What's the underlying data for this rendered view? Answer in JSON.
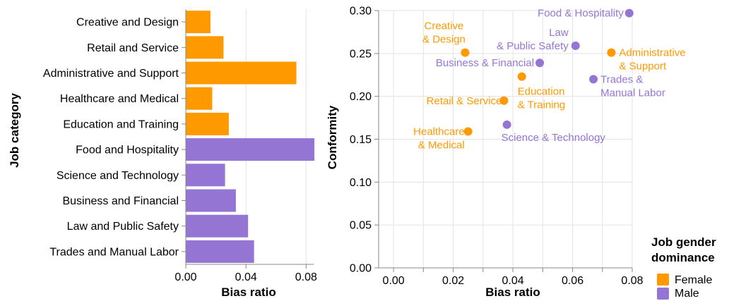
{
  "colors": {
    "Female": "#ff9900",
    "Male": "#9575d4"
  },
  "legend": {
    "title_lines": [
      "Job gender",
      "dominance"
    ],
    "items": [
      {
        "label": "Female",
        "color": "#ff9900"
      },
      {
        "label": "Male",
        "color": "#9575d4"
      }
    ]
  },
  "chart_data": [
    {
      "type": "bar",
      "orientation": "horizontal",
      "ylabel": "Job category",
      "xlabel": "Bias ratio",
      "xlim": [
        0,
        0.085
      ],
      "xticks": [
        "0.00",
        "0.04",
        "0.08"
      ],
      "categories": [
        "Creative and Design",
        "Retail and Service",
        "Administrative and Support",
        "Healthcare and Medical",
        "Education and Training",
        "Food and Hospitality",
        "Science and Technology",
        "Business and Financial",
        "Law and Public Safety",
        "Trades and Manual Labor"
      ],
      "values": [
        0.0164,
        0.0251,
        0.0735,
        0.0176,
        0.0286,
        0.0855,
        0.0261,
        0.0333,
        0.0414,
        0.0454
      ],
      "group": [
        "Female",
        "Female",
        "Female",
        "Female",
        "Female",
        "Male",
        "Male",
        "Male",
        "Male",
        "Male"
      ]
    },
    {
      "type": "scatter",
      "xlabel": "Bias ratio",
      "ylabel": "Conformity",
      "xlim": [
        -0.005,
        0.08
      ],
      "ylim": [
        0,
        0.3
      ],
      "xticks": [
        "0.00",
        "0.02",
        "0.04",
        "0.06",
        "0.08"
      ],
      "yticks": [
        "0.00",
        "0.05",
        "0.10",
        "0.15",
        "0.20",
        "0.25",
        "0.30"
      ],
      "points": [
        {
          "label_lines": [
            "Creative",
            "& Design"
          ],
          "x": 0.024,
          "y": 0.251,
          "group": "Female"
        },
        {
          "label_lines": [
            "Retail & Service"
          ],
          "x": 0.037,
          "y": 0.195,
          "group": "Female"
        },
        {
          "label_lines": [
            "Administrative",
            "& Support"
          ],
          "x": 0.073,
          "y": 0.251,
          "group": "Female"
        },
        {
          "label_lines": [
            "Healthcare",
            "& Medical"
          ],
          "x": 0.025,
          "y": 0.159,
          "group": "Female"
        },
        {
          "label_lines": [
            "Education",
            "& Training"
          ],
          "x": 0.043,
          "y": 0.223,
          "group": "Female"
        },
        {
          "label_lines": [
            "Food & Hospitality"
          ],
          "x": 0.079,
          "y": 0.297,
          "group": "Male"
        },
        {
          "label_lines": [
            "Science & Technology"
          ],
          "x": 0.038,
          "y": 0.167,
          "group": "Male"
        },
        {
          "label_lines": [
            "Business & Financial"
          ],
          "x": 0.049,
          "y": 0.239,
          "group": "Male"
        },
        {
          "label_lines": [
            "Law",
            "& Public Safety"
          ],
          "x": 0.061,
          "y": 0.259,
          "group": "Male"
        },
        {
          "label_lines": [
            "Trades &",
            "Manual Labor"
          ],
          "x": 0.067,
          "y": 0.22,
          "group": "Male"
        }
      ]
    }
  ]
}
